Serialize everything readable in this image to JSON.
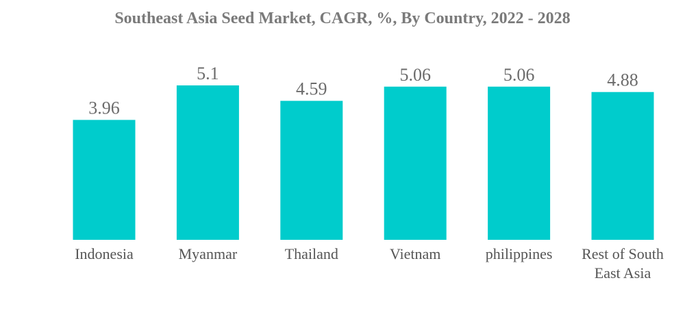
{
  "chart_data": {
    "type": "bar",
    "title": "Southeast Asia Seed Market, CAGR, %, By Country, 2022 - 2028",
    "xlabel": "",
    "ylabel": "",
    "categories": [
      "Indonesia",
      "Myanmar",
      "Thailand",
      "Vietnam",
      "philippines",
      "Rest of South East Asia"
    ],
    "category_lines": [
      [
        "Indonesia"
      ],
      [
        "Myanmar"
      ],
      [
        "Thailand"
      ],
      [
        "Vietnam"
      ],
      [
        "philippines"
      ],
      [
        "Rest of South",
        "East Asia"
      ]
    ],
    "values": [
      3.96,
      5.1,
      4.59,
      5.06,
      5.06,
      4.88
    ],
    "value_labels": [
      "3.96",
      "5.1",
      "4.59",
      "5.06",
      "5.06",
      "4.88"
    ],
    "ylim": [
      0,
      5.1
    ],
    "grid": false,
    "legend": "none",
    "colors": {
      "bar": "#00cccc"
    }
  }
}
